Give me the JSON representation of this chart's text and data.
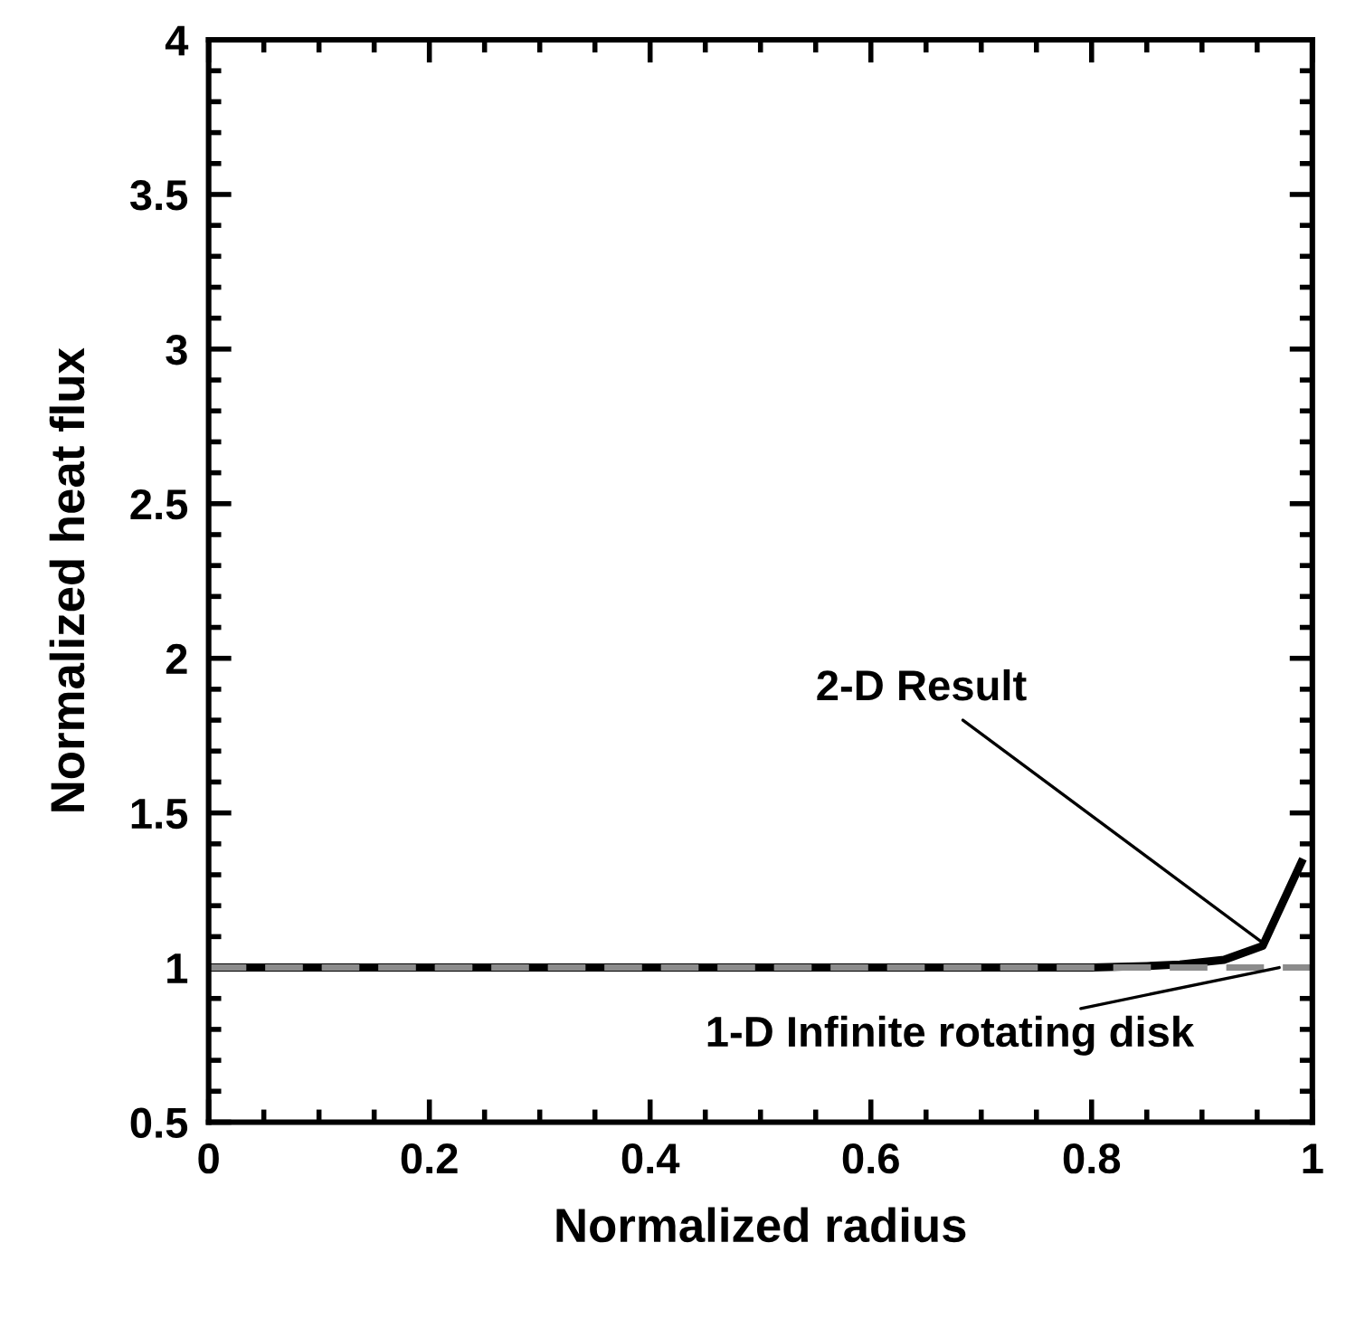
{
  "chart_data": {
    "type": "line",
    "xlabel": "Normalized radius",
    "ylabel": "Normalized heat flux",
    "xlim": [
      0,
      1
    ],
    "ylim": [
      0.5,
      4
    ],
    "xticks": [
      0,
      0.2,
      0.4,
      0.6,
      0.8,
      1
    ],
    "yticks": [
      0.5,
      1,
      1.5,
      2,
      2.5,
      3,
      3.5,
      4
    ],
    "grid": false,
    "legend": false,
    "series": [
      {
        "color": "#000000",
        "line_style": "solid",
        "x": [
          0,
          0.2,
          0.4,
          0.6,
          0.8,
          0.85,
          0.88,
          0.92,
          0.955,
          0.99
        ],
        "values": [
          1,
          1,
          1,
          1,
          1,
          1.005,
          1.01,
          1.025,
          1.07,
          1.34
        ]
      },
      {
        "color": "#8c8c8c",
        "line_style": "dashed",
        "x": [
          0,
          1
        ],
        "values": [
          1,
          1
        ]
      }
    ],
    "annotations": [
      {
        "text": "2-D Result",
        "x": 0.955,
        "y": 1.08
      },
      {
        "text": "1-D Infinite rotating disk",
        "x": 0.97,
        "y": 1.0
      }
    ]
  }
}
